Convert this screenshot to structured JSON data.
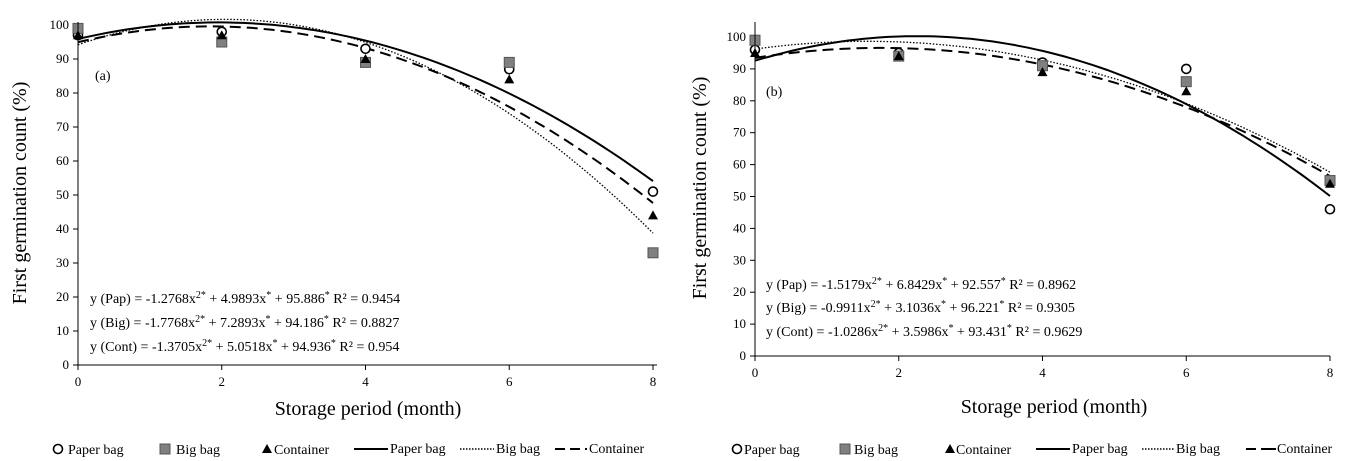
{
  "panels": [
    {
      "id": "a",
      "label": "(a)",
      "ylabel": "First germination count (%)",
      "xlabel": "Storage period (month)",
      "ylim": [
        0,
        100
      ],
      "xlim": [
        0,
        8
      ],
      "yticks": [
        0,
        10,
        20,
        30,
        40,
        50,
        60,
        70,
        80,
        90,
        100
      ],
      "xticks": [
        0,
        2,
        4,
        6,
        8
      ],
      "equations": [
        {
          "text": "y (Pap) = -1.2768x2* + 4.9893x* + 95.886*  R² = 0.9454"
        },
        {
          "text": "y (Big) = -1.7768x2* + 7.2893x* + 94.186*  R² = 0.8827"
        },
        {
          "text": "y (Cont) = -1.3705x2* + 5.0518x* + 94.936*  R² = 0.954"
        }
      ]
    },
    {
      "id": "b",
      "label": "(b)",
      "ylabel": "First germination count (%)",
      "xlabel": "Storage period (month)",
      "ylim": [
        0,
        105
      ],
      "xlim": [
        0,
        8
      ],
      "yticks": [
        0,
        10,
        20,
        30,
        40,
        50,
        60,
        70,
        80,
        90,
        100
      ],
      "xticks": [
        0,
        2,
        4,
        6,
        8
      ],
      "equations": [
        {
          "text": "y (Pap) =  -1.5179x2* + 6.8429x* + 92.557*  R² = 0.8962"
        },
        {
          "text": "y (Big) = -0.9911x2* + 3.1036x* + 96.221*  R² = 0.9305"
        },
        {
          "text": "y (Cont) = -1.0286x2* + 3.5986x* + 93.431*    R² = 0.9629"
        }
      ]
    }
  ],
  "legend": {
    "a": {
      "paper_bag_marker": "Paper bag",
      "big_bag_marker": "Big bag",
      "container_marker": "Container",
      "paper_bag_line": "Paper bag",
      "big_bag_line": "Big bag",
      "container_line": "Container"
    },
    "b": {
      "paper_bag_marker": "Paper bag",
      "big_bag_marker": "Big bag",
      "container_marker": "Container",
      "paper_bag_line": "Paper bag",
      "big_bag_line": "Big bag",
      "container_line": "Container"
    }
  },
  "chart_data": [
    {
      "type": "scatter",
      "panel": "a",
      "x": [
        0,
        2,
        4,
        6,
        8
      ],
      "series": [
        {
          "name": "Paper bag",
          "marker": "circle",
          "values": [
            97,
            98,
            93,
            87,
            51
          ],
          "fit": {
            "a": -1.2768,
            "b": 4.9893,
            "c": 95.886,
            "style": "solid"
          }
        },
        {
          "name": "Big bag",
          "marker": "square",
          "values": [
            99,
            95,
            89,
            89,
            33
          ],
          "fit": {
            "a": -1.7768,
            "b": 7.2893,
            "c": 94.186,
            "style": "dotted"
          }
        },
        {
          "name": "Container",
          "marker": "triangle",
          "values": [
            97,
            97,
            90,
            84,
            44
          ],
          "fit": {
            "a": -1.3705,
            "b": 5.0518,
            "c": 94.936,
            "style": "dashed"
          }
        }
      ],
      "xlabel": "Storage period (month)",
      "ylabel": "First germination count (%)",
      "xlim": [
        0,
        8
      ],
      "ylim": [
        0,
        100
      ],
      "grid": false
    },
    {
      "type": "scatter",
      "panel": "b",
      "x": [
        0,
        2,
        4,
        6,
        8
      ],
      "series": [
        {
          "name": "Paper bag",
          "marker": "circle",
          "values": [
            96,
            95,
            92,
            90,
            46
          ],
          "fit": {
            "a": -1.5179,
            "b": 6.8429,
            "c": 92.557,
            "style": "solid"
          }
        },
        {
          "name": "Big bag",
          "marker": "square",
          "values": [
            99,
            94,
            91,
            86,
            55
          ],
          "fit": {
            "a": -0.9911,
            "b": 3.1036,
            "c": 96.221,
            "style": "dotted"
          }
        },
        {
          "name": "Container",
          "marker": "triangle",
          "values": [
            95,
            94,
            89,
            83,
            54
          ],
          "fit": {
            "a": -1.0286,
            "b": 3.5986,
            "c": 93.431,
            "style": "dashed"
          }
        }
      ],
      "xlabel": "Storage period (month)",
      "ylabel": "First germination count (%)",
      "xlim": [
        0,
        8
      ],
      "ylim": [
        0,
        105
      ],
      "grid": false
    }
  ]
}
